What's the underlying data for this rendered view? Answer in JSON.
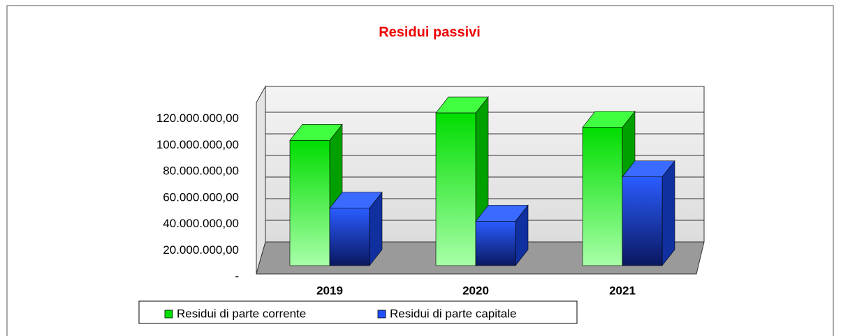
{
  "chart_data": {
    "type": "bar3d",
    "title": "Residui passivi",
    "categories": [
      "2019",
      "2020",
      "2021"
    ],
    "series": [
      {
        "name": "Residui di parte corrente",
        "color": "#00e000",
        "values": [
          96000000,
          117000000,
          106000000
        ]
      },
      {
        "name": "Residui di parte capitale",
        "color": "#2050ff",
        "values": [
          44000000,
          34000000,
          68000000
        ]
      }
    ],
    "ylim": [
      0,
      140000000
    ],
    "yticks": [
      {
        "value": 0,
        "label": "-"
      },
      {
        "value": 20000000,
        "label": "20.000.000,00"
      },
      {
        "value": 40000000,
        "label": "40.000.000,00"
      },
      {
        "value": 60000000,
        "label": "60.000.000,00"
      },
      {
        "value": 80000000,
        "label": "80.000.000,00"
      },
      {
        "value": 100000000,
        "label": "100.000.000,00"
      },
      {
        "value": 120000000,
        "label": "120.000.000,00"
      }
    ],
    "grid": true,
    "legend": "bottom"
  }
}
